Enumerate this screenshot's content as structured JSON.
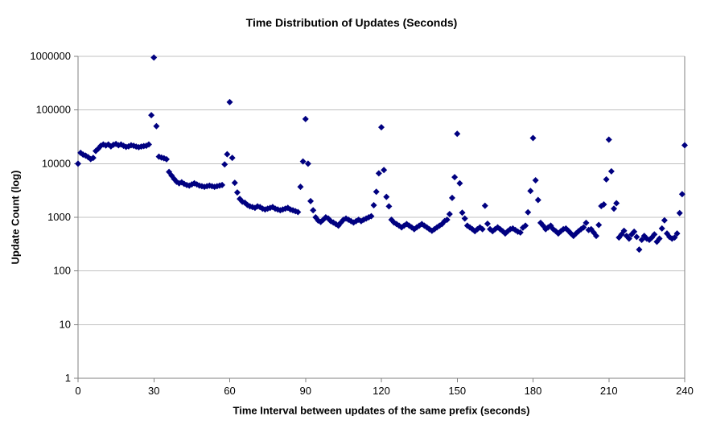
{
  "chart_data": {
    "type": "scatter",
    "title": "Time Distribution of Updates (Seconds)",
    "xlabel": "Time Interval between updates of the same prefix (seconds)",
    "ylabel": "Update Count (log)",
    "xlim": [
      0,
      240
    ],
    "ylim": [
      1,
      1000000
    ],
    "y_scale": "log",
    "grid": "horizontal",
    "legend": "none",
    "x_ticks": [
      0,
      30,
      60,
      90,
      120,
      150,
      180,
      210,
      240
    ],
    "y_ticks": [
      1,
      10,
      100,
      1000,
      10000,
      100000,
      1000000
    ],
    "y_tick_labels": [
      "1",
      "10",
      "100",
      "1000",
      "10000",
      "100000",
      "1000000"
    ],
    "marker": "diamond",
    "colors": {
      "marker": "#000080",
      "gridline": "#c0c0c0",
      "axis": "#808080",
      "text": "#000000",
      "background": "#ffffff"
    },
    "x": [
      0,
      1,
      2,
      3,
      4,
      5,
      6,
      7,
      8,
      9,
      10,
      11,
      12,
      13,
      14,
      15,
      16,
      17,
      18,
      19,
      20,
      21,
      22,
      23,
      24,
      25,
      26,
      27,
      28,
      29,
      30,
      31,
      32,
      33,
      34,
      35,
      36,
      37,
      38,
      39,
      40,
      41,
      42,
      43,
      44,
      45,
      46,
      47,
      48,
      49,
      50,
      51,
      52,
      53,
      54,
      55,
      56,
      57,
      58,
      59,
      60,
      61,
      62,
      63,
      64,
      65,
      66,
      67,
      68,
      69,
      70,
      71,
      72,
      73,
      74,
      75,
      76,
      77,
      78,
      79,
      80,
      81,
      82,
      83,
      84,
      85,
      86,
      87,
      88,
      89,
      90,
      91,
      92,
      93,
      94,
      95,
      96,
      97,
      98,
      99,
      100,
      101,
      102,
      103,
      104,
      105,
      106,
      107,
      108,
      109,
      110,
      111,
      112,
      113,
      114,
      115,
      116,
      117,
      118,
      119,
      120,
      121,
      122,
      123,
      124,
      125,
      126,
      127,
      128,
      129,
      130,
      131,
      132,
      133,
      134,
      135,
      136,
      137,
      138,
      139,
      140,
      141,
      142,
      143,
      144,
      145,
      146,
      147,
      148,
      149,
      150,
      151,
      152,
      153,
      154,
      155,
      156,
      157,
      158,
      159,
      160,
      161,
      162,
      163,
      164,
      165,
      166,
      167,
      168,
      169,
      170,
      171,
      172,
      173,
      174,
      175,
      176,
      177,
      178,
      179,
      180,
      181,
      182,
      183,
      184,
      185,
      186,
      187,
      188,
      189,
      190,
      191,
      192,
      193,
      194,
      195,
      196,
      197,
      198,
      199,
      200,
      201,
      202,
      203,
      204,
      205,
      206,
      207,
      208,
      209,
      210,
      211,
      212,
      213,
      214,
      215,
      216,
      217,
      218,
      219,
      220,
      221,
      222,
      223,
      224,
      225,
      226,
      227,
      228,
      229,
      230,
      231,
      232,
      233,
      234,
      235,
      236,
      237,
      238,
      239,
      240
    ],
    "y": [
      10000,
      15900,
      14700,
      14100,
      13200,
      12200,
      12800,
      17200,
      19000,
      21500,
      22800,
      21800,
      22800,
      21000,
      22500,
      23300,
      22000,
      22800,
      21500,
      20500,
      21000,
      22000,
      21500,
      20800,
      20300,
      20800,
      21300,
      21500,
      22800,
      80000,
      950000,
      50000,
      13500,
      13000,
      12600,
      12100,
      7000,
      6000,
      5200,
      4600,
      4300,
      4500,
      4200,
      4000,
      3900,
      4100,
      4300,
      4100,
      3900,
      3800,
      3700,
      3800,
      3900,
      3800,
      3700,
      3800,
      3900,
      4000,
      9700,
      15000,
      140000,
      12800,
      4400,
      2900,
      2200,
      1950,
      1870,
      1700,
      1600,
      1550,
      1500,
      1600,
      1550,
      1450,
      1400,
      1450,
      1500,
      1550,
      1450,
      1400,
      1350,
      1400,
      1450,
      1500,
      1400,
      1350,
      1300,
      1250,
      3700,
      11000,
      68000,
      10000,
      2000,
      1350,
      1000,
      870,
      820,
      900,
      1000,
      950,
      850,
      800,
      750,
      700,
      800,
      900,
      950,
      900,
      850,
      800,
      850,
      900,
      850,
      900,
      950,
      1000,
      1050,
      1680,
      3000,
      6600,
      47600,
      7600,
      2400,
      1600,
      900,
      800,
      750,
      700,
      650,
      700,
      750,
      700,
      650,
      600,
      650,
      700,
      750,
      700,
      650,
      600,
      560,
      600,
      650,
      700,
      750,
      850,
      900,
      1150,
      2300,
      5600,
      36000,
      4300,
      1220,
      950,
      700,
      650,
      600,
      550,
      600,
      650,
      600,
      1640,
      760,
      600,
      550,
      600,
      650,
      600,
      550,
      500,
      550,
      600,
      620,
      580,
      540,
      520,
      640,
      700,
      1240,
      3100,
      30000,
      4900,
      2100,
      790,
      700,
      600,
      650,
      700,
      600,
      550,
      500,
      550,
      600,
      620,
      560,
      500,
      450,
      500,
      550,
      600,
      650,
      790,
      580,
      600,
      520,
      450,
      720,
      1620,
      1740,
      5100,
      28000,
      7200,
      1450,
      1830,
      420,
      480,
      560,
      450,
      400,
      480,
      540,
      430,
      250,
      380,
      450,
      400,
      380,
      420,
      480,
      350,
      400,
      620,
      880,
      500,
      430,
      400,
      420,
      500,
      1200,
      2700,
      22000
    ]
  }
}
